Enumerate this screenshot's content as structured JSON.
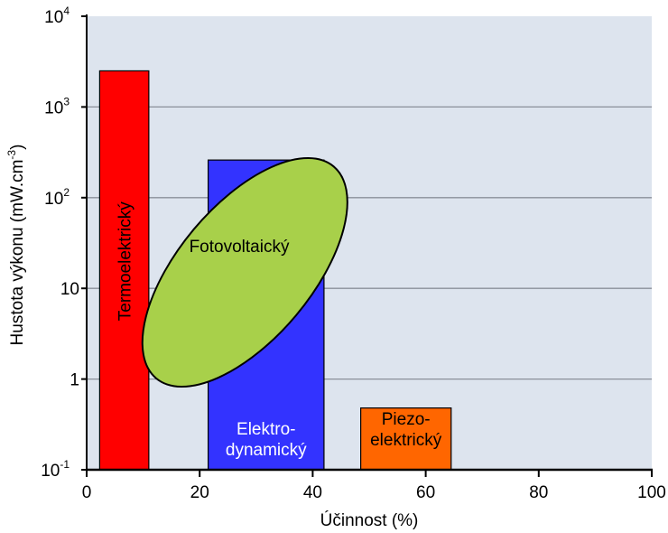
{
  "chart_data": {
    "type": "bar",
    "title": "",
    "xlabel": "Účinnost (%)",
    "ylabel": "Hustota výkonu (mW.cm",
    "ylabel_sup": "-3",
    "ylabel_close": ")",
    "yscale": "log",
    "xlim": [
      0,
      100
    ],
    "ylim": [
      0.1,
      10000
    ],
    "grid": true,
    "x_ticks": [
      0,
      20,
      40,
      60,
      80,
      100
    ],
    "y_ticks": [
      {
        "value": 0.1,
        "base": "10",
        "exp": "-1"
      },
      {
        "value": 1,
        "base": "1",
        "exp": ""
      },
      {
        "value": 10,
        "base": "10",
        "exp": ""
      },
      {
        "value": 100,
        "base": "10",
        "exp": "2"
      },
      {
        "value": 1000,
        "base": "10",
        "exp": "3"
      },
      {
        "value": 10000,
        "base": "10",
        "exp": "4"
      }
    ],
    "series": [
      {
        "label": "Termoelektrický",
        "x_range": [
          2.3,
          11
        ],
        "y_range": [
          0.1,
          2500
        ],
        "color": "#ff0000",
        "label_color": "#000000",
        "label_rotate": -90,
        "label_lines": [
          "Termoelektrický"
        ]
      },
      {
        "label": "Elektrodynamický",
        "x_range": [
          21.5,
          42
        ],
        "y_range": [
          0.1,
          260
        ],
        "color": "#3333ff",
        "label_color": "#ffffff",
        "label_rotate": 0,
        "label_lines": [
          "Elektro-",
          "dynamický"
        ]
      },
      {
        "label": "Piezoelektrický",
        "x_range": [
          48.5,
          64.5
        ],
        "y_range": [
          0.1,
          0.48
        ],
        "color": "#ff6600",
        "label_color": "#000000",
        "label_rotate": 0,
        "label_lines": [
          "Piezo-",
          "elektrický"
        ]
      }
    ],
    "ellipse": {
      "label": "Fotovoltaický",
      "color": "#a8d04a",
      "x_center": 28,
      "y_center": 15,
      "label_x": 27,
      "label_y": 25
    }
  }
}
